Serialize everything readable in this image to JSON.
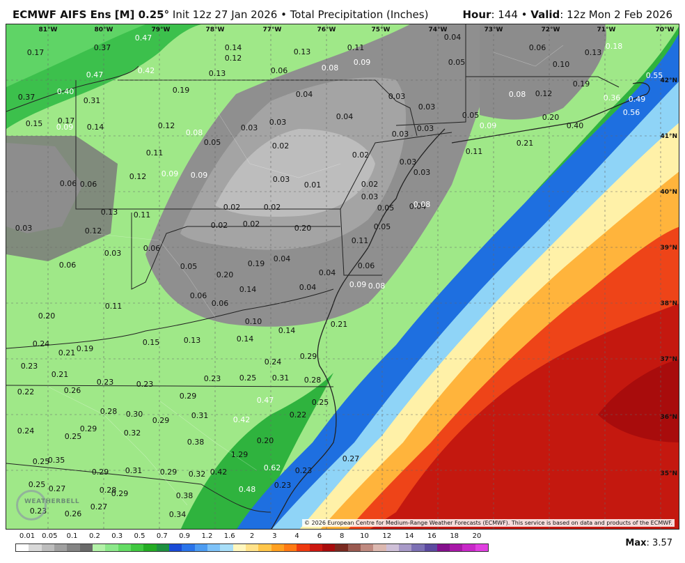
{
  "header": {
    "model": "ECMWF AIFS Ens [M] 0.25",
    "deg": "°",
    "init": "Init 12z 27 Jan 2026",
    "product": "Total Precipitation (Inches)",
    "hour_label": "Hour",
    "hour_value": "144",
    "valid_label": "Valid",
    "valid_value": "12z Mon 2 Feb 2026"
  },
  "longitudes": [
    "81°W",
    "80°W",
    "79°W",
    "78°W",
    "77°W",
    "76°W",
    "75°W",
    "74°W",
    "73°W",
    "72°W",
    "71°W",
    "70°W"
  ],
  "latitudes": [
    "42°N",
    "41°N",
    "40°N",
    "39°N",
    "38°N",
    "37°N",
    "36°N",
    "35°N"
  ],
  "copyright": "© 2026 European Centre for Medium-Range Weather Forecasts (ECMWF). This service is based on data and products of the ECMWF.",
  "logo_text": "WEATHERBELL",
  "legend": {
    "labels": [
      "0.01",
      "0.05",
      "0.1",
      "0.2",
      "0.3",
      "0.5",
      "0.7",
      "0.9",
      "1.2",
      "1.6",
      "2",
      "3",
      "4",
      "6",
      "8",
      "10",
      "12",
      "14",
      "16",
      "18",
      "20"
    ],
    "colors": [
      "#ffffff",
      "#d9d9d9",
      "#bdbdbd",
      "#a0a0a0",
      "#848484",
      "#6a6a6a",
      "#b3f2a8",
      "#8ce88a",
      "#64dc64",
      "#40c840",
      "#24ac24",
      "#1e9040",
      "#1a4bd6",
      "#2a74ea",
      "#4c9cf2",
      "#7ec2f8",
      "#a8def8",
      "#fff7bf",
      "#ffe28a",
      "#ffc64a",
      "#ffa020",
      "#ff7a14",
      "#ee3a10",
      "#cc1810",
      "#a80c0c",
      "#7a2a20",
      "#9a5a50",
      "#bf8a80",
      "#dcb8b0",
      "#cfc0d8",
      "#a89ac8",
      "#7c70b4",
      "#5c4aa0",
      "#84108c",
      "#a818a8",
      "#c828c8",
      "#e040e0"
    ]
  },
  "max_label": "Max",
  "max_value": "3.57",
  "labels": [
    {
      "t": "0.47",
      "c": "w"
    },
    {
      "t": "0.37"
    },
    {
      "t": "0.17"
    },
    {
      "t": "0.42",
      "c": "w"
    },
    {
      "t": "0.47",
      "c": "w"
    },
    {
      "t": "0.14"
    },
    {
      "t": "0.12"
    },
    {
      "t": "0.13"
    },
    {
      "t": "0.11"
    },
    {
      "t": "0.04"
    },
    {
      "t": "0.37"
    },
    {
      "t": "0.40",
      "c": "w"
    },
    {
      "t": "0.31"
    },
    {
      "t": "0.19"
    },
    {
      "t": "0.13"
    },
    {
      "t": "0.06"
    },
    {
      "t": "0.08",
      "c": "w"
    },
    {
      "t": "0.09",
      "c": "w"
    },
    {
      "t": "0.05"
    },
    {
      "t": "0.06"
    },
    {
      "t": "0.10"
    },
    {
      "t": "0.13"
    },
    {
      "t": "0.18",
      "c": "w"
    },
    {
      "t": "0.55",
      "c": "w"
    },
    {
      "t": "0.15"
    },
    {
      "t": "0.17"
    },
    {
      "t": "0.14"
    },
    {
      "t": "0.12"
    },
    {
      "t": "0.08",
      "c": "w"
    },
    {
      "t": "0.04"
    },
    {
      "t": "0.03"
    },
    {
      "t": "0.03"
    },
    {
      "t": "0.08",
      "c": "w"
    },
    {
      "t": "0.12"
    },
    {
      "t": "0.19"
    },
    {
      "t": "0.36",
      "c": "w"
    },
    {
      "t": "0.49",
      "c": "w"
    },
    {
      "t": "0.09",
      "c": "w"
    },
    {
      "t": "0.05"
    },
    {
      "t": "0.03"
    },
    {
      "t": "0.03"
    },
    {
      "t": "0.04"
    },
    {
      "t": "0.05"
    },
    {
      "t": "0.20"
    },
    {
      "t": "0.56",
      "c": "w"
    },
    {
      "t": "0.09",
      "c": "w"
    },
    {
      "t": "0.11"
    },
    {
      "t": "0.03"
    },
    {
      "t": "0.03"
    },
    {
      "t": "0.02"
    },
    {
      "t": "0.02"
    },
    {
      "t": "0.03"
    },
    {
      "t": "0.09",
      "c": "w"
    },
    {
      "t": "0.40"
    },
    {
      "t": "0.21"
    },
    {
      "t": "0.11"
    },
    {
      "t": "0.12"
    },
    {
      "t": "0.09",
      "c": "w"
    },
    {
      "t": "0.03"
    },
    {
      "t": "0.01"
    },
    {
      "t": "0.02"
    },
    {
      "t": "0.03"
    },
    {
      "t": "0.04"
    },
    {
      "t": "0.05"
    },
    {
      "t": "0.06"
    },
    {
      "t": "0.06"
    },
    {
      "t": "0.03"
    },
    {
      "t": "0.02"
    },
    {
      "t": "0.02"
    },
    {
      "t": "0.02"
    },
    {
      "t": "0.02"
    },
    {
      "t": "0.03"
    },
    {
      "t": "0.05"
    },
    {
      "t": "0.08",
      "c": "w"
    },
    {
      "t": "0.13"
    },
    {
      "t": "0.11"
    },
    {
      "t": "0.12"
    },
    {
      "t": "0.06"
    },
    {
      "t": "0.05"
    },
    {
      "t": "0.11"
    },
    {
      "t": "0.06"
    },
    {
      "t": "0.03"
    },
    {
      "t": "0.20"
    },
    {
      "t": "0.19"
    },
    {
      "t": "0.04"
    },
    {
      "t": "0.04"
    },
    {
      "t": "0.04"
    },
    {
      "t": "0.09",
      "c": "w"
    },
    {
      "t": "0.08",
      "c": "w"
    },
    {
      "t": "0.14"
    },
    {
      "t": "0.20"
    },
    {
      "t": "0.06"
    },
    {
      "t": "0.06"
    },
    {
      "t": "0.06"
    },
    {
      "t": "0.11"
    },
    {
      "t": "0.20"
    },
    {
      "t": "0.10"
    },
    {
      "t": "0.14"
    },
    {
      "t": "0.21"
    },
    {
      "t": "0.24"
    },
    {
      "t": "0.21"
    },
    {
      "t": "0.19"
    },
    {
      "t": "0.15"
    },
    {
      "t": "0.13"
    },
    {
      "t": "0.14"
    },
    {
      "t": "0.29"
    },
    {
      "t": "0.23"
    },
    {
      "t": "0.24"
    },
    {
      "t": "0.21"
    },
    {
      "t": "0.23"
    },
    {
      "t": "0.23"
    },
    {
      "t": "0.23"
    },
    {
      "t": "0.25"
    },
    {
      "t": "0.31"
    },
    {
      "t": "0.28"
    },
    {
      "t": "0.22"
    },
    {
      "t": "0.26"
    },
    {
      "t": "0.29"
    },
    {
      "t": "0.47",
      "c": "w"
    },
    {
      "t": "0.25"
    },
    {
      "t": "0.28"
    },
    {
      "t": "0.30"
    },
    {
      "t": "0.29"
    },
    {
      "t": "0.31"
    },
    {
      "t": "0.42",
      "c": "w"
    },
    {
      "t": "0.22"
    },
    {
      "t": "0.24"
    },
    {
      "t": "0.25"
    },
    {
      "t": "0.29"
    },
    {
      "t": "0.32"
    },
    {
      "t": "0.38"
    },
    {
      "t": "0.20"
    },
    {
      "t": "0.25"
    },
    {
      "t": "0.35"
    },
    {
      "t": "1.29"
    },
    {
      "t": "0.27"
    },
    {
      "t": "0.29"
    },
    {
      "t": "0.29"
    },
    {
      "t": "0.31"
    },
    {
      "t": "0.32"
    },
    {
      "t": "0.42"
    },
    {
      "t": "0.62",
      "c": "w"
    },
    {
      "t": "0.23"
    },
    {
      "t": "0.25"
    },
    {
      "t": "0.27"
    },
    {
      "t": "0.28"
    },
    {
      "t": "0.29"
    },
    {
      "t": "0.38"
    },
    {
      "t": "0.48",
      "c": "w"
    },
    {
      "t": "0.23"
    },
    {
      "t": "0.23"
    },
    {
      "t": "0.26"
    },
    {
      "t": "0.27"
    },
    {
      "t": "0.34"
    }
  ]
}
